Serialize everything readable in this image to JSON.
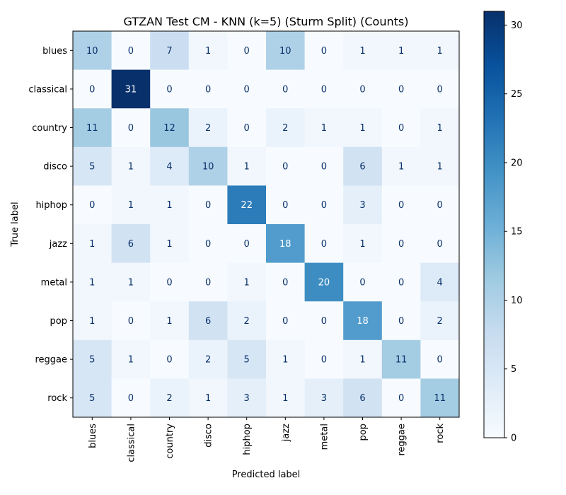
{
  "chart_data": {
    "type": "heatmap",
    "title": "GTZAN Test CM - KNN (k=5) (Sturm Split) (Counts)",
    "xlabel": "Predicted label",
    "ylabel": "True label",
    "x_categories": [
      "blues",
      "classical",
      "country",
      "disco",
      "hiphop",
      "jazz",
      "metal",
      "pop",
      "reggae",
      "rock"
    ],
    "y_categories": [
      "blues",
      "classical",
      "country",
      "disco",
      "hiphop",
      "jazz",
      "metal",
      "pop",
      "reggae",
      "rock"
    ],
    "values": [
      [
        10,
        0,
        7,
        1,
        0,
        10,
        0,
        1,
        1,
        1
      ],
      [
        0,
        31,
        0,
        0,
        0,
        0,
        0,
        0,
        0,
        0
      ],
      [
        11,
        0,
        12,
        2,
        0,
        2,
        1,
        1,
        0,
        1
      ],
      [
        5,
        1,
        4,
        10,
        1,
        0,
        0,
        6,
        1,
        1
      ],
      [
        0,
        1,
        1,
        0,
        22,
        0,
        0,
        3,
        0,
        0
      ],
      [
        1,
        6,
        1,
        0,
        0,
        18,
        0,
        1,
        0,
        0
      ],
      [
        1,
        1,
        0,
        0,
        1,
        0,
        20,
        0,
        0,
        4
      ],
      [
        1,
        0,
        1,
        6,
        2,
        0,
        0,
        18,
        0,
        2
      ],
      [
        5,
        1,
        0,
        2,
        5,
        1,
        0,
        1,
        11,
        0
      ],
      [
        5,
        0,
        2,
        1,
        3,
        1,
        3,
        6,
        0,
        11
      ]
    ],
    "colormap": "Blues",
    "vmin": 0,
    "vmax": 31,
    "colorbar_ticks": [
      0,
      5,
      10,
      15,
      20,
      25,
      30
    ],
    "text_color_dark": "#08306b",
    "text_color_light": "#ffffff"
  }
}
